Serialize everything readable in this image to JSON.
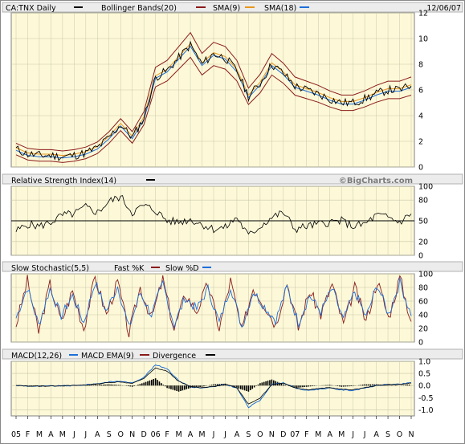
{
  "chart_data": [
    {
      "type": "line",
      "title": "CA:TNX Daily",
      "date": "12/06/07",
      "legend": [
        {
          "label": "Bollinger Bands(20)",
          "color": "#8b1a1a"
        },
        {
          "label": "SMA(9)",
          "color": "#e8961e"
        },
        {
          "label": "SMA(18)",
          "color": "#1e6fd9"
        }
      ],
      "ylim": [
        0,
        12
      ],
      "yticks": [
        "0",
        "2",
        "4",
        "6",
        "8",
        "10",
        "12"
      ],
      "x_labels": [
        "05",
        "F",
        "M",
        "A",
        "M",
        "J",
        "J",
        "A",
        "S",
        "O",
        "N",
        "D",
        "06",
        "F",
        "M",
        "A",
        "M",
        "J",
        "J",
        "A",
        "S",
        "O",
        "N",
        "D",
        "07",
        "F",
        "M",
        "A",
        "M",
        "J",
        "J",
        "A",
        "S",
        "O",
        "N"
      ],
      "series": [
        {
          "name": "CA:TNX Daily",
          "values": [
            1.4,
            1.0,
            0.9,
            0.9,
            0.8,
            0.9,
            1.1,
            1.5,
            2.3,
            3.3,
            2.3,
            3.8,
            7.0,
            7.5,
            8.5,
            9.5,
            8.0,
            8.8,
            8.5,
            7.5,
            5.5,
            6.5,
            8.0,
            7.3,
            6.3,
            6.0,
            5.7,
            5.3,
            5.0,
            5.0,
            5.3,
            5.7,
            6.0,
            6.0,
            6.3
          ]
        }
      ]
    },
    {
      "type": "line",
      "title": "Relative Strength Index(14)",
      "watermark": "©BigCharts.com",
      "ylim": [
        0,
        100
      ],
      "yticks": [
        "0",
        "20",
        "50",
        "80",
        "100"
      ],
      "reference_line": 50,
      "series": [
        {
          "name": "Relative Strength Index(14)",
          "values": [
            35,
            45,
            42,
            48,
            58,
            60,
            70,
            62,
            78,
            85,
            62,
            72,
            65,
            50,
            48,
            52,
            45,
            38,
            40,
            55,
            28,
            42,
            55,
            62,
            38,
            42,
            45,
            48,
            50,
            42,
            45,
            58,
            55,
            48,
            60
          ]
        }
      ]
    },
    {
      "type": "line",
      "title": "Slow Stochastic(5,5)",
      "legend": [
        {
          "label": "Fast %K",
          "color": "#8b1a1a"
        },
        {
          "label": "Slow %D",
          "color": "#1e6fd9"
        }
      ],
      "ylim": [
        0,
        100
      ],
      "yticks": [
        "0",
        "20",
        "40",
        "60",
        "80",
        "100"
      ],
      "series": [
        {
          "name": "Fast %K",
          "values": [
            25,
            90,
            15,
            85,
            30,
            75,
            20,
            95,
            40,
            88,
            12,
            80,
            35,
            92,
            18,
            70,
            45,
            85,
            20,
            90,
            15,
            80,
            55,
            25,
            88,
            20,
            75,
            40,
            85,
            25,
            80,
            30,
            90,
            35,
            95,
            30
          ]
        },
        {
          "name": "Slow %D",
          "values": [
            35,
            80,
            25,
            78,
            38,
            68,
            28,
            88,
            45,
            82,
            20,
            72,
            40,
            86,
            25,
            65,
            48,
            78,
            28,
            82,
            22,
            74,
            52,
            32,
            80,
            28,
            68,
            44,
            78,
            32,
            74,
            36,
            84,
            40,
            88,
            38
          ]
        }
      ]
    },
    {
      "type": "line",
      "title": "MACD(12,26)",
      "legend": [
        {
          "label": "MACD EMA(9)",
          "color": "#1e6fd9"
        },
        {
          "label": "Divergence",
          "color": "#000000"
        }
      ],
      "ylim": [
        -1.25,
        1.0
      ],
      "yticks": [
        "1.0",
        "0.5",
        "0.0",
        "-0.5",
        "-1.0"
      ],
      "series": [
        {
          "name": "MACD EMA(9)",
          "values": [
            0.0,
            -0.02,
            -0.03,
            -0.02,
            -0.01,
            0.0,
            0.03,
            0.08,
            0.15,
            0.18,
            0.1,
            0.35,
            0.85,
            0.7,
            0.2,
            -0.05,
            -0.1,
            -0.05,
            0.05,
            -0.1,
            -0.9,
            -0.6,
            0.05,
            0.12,
            -0.1,
            -0.2,
            -0.15,
            -0.1,
            -0.18,
            -0.2,
            -0.1,
            0.0,
            0.05,
            0.05,
            0.12
          ]
        },
        {
          "name": "Divergence",
          "values": [
            0.0,
            -0.01,
            -0.01,
            0.0,
            0.0,
            0.01,
            0.02,
            0.03,
            0.05,
            0.02,
            -0.05,
            0.12,
            0.3,
            -0.1,
            -0.25,
            -0.1,
            -0.05,
            0.05,
            0.08,
            -0.1,
            -0.25,
            0.1,
            0.25,
            0.05,
            -0.1,
            -0.05,
            0.0,
            0.03,
            -0.05,
            -0.02,
            0.05,
            0.05,
            0.02,
            0.0,
            0.05
          ]
        }
      ]
    }
  ]
}
